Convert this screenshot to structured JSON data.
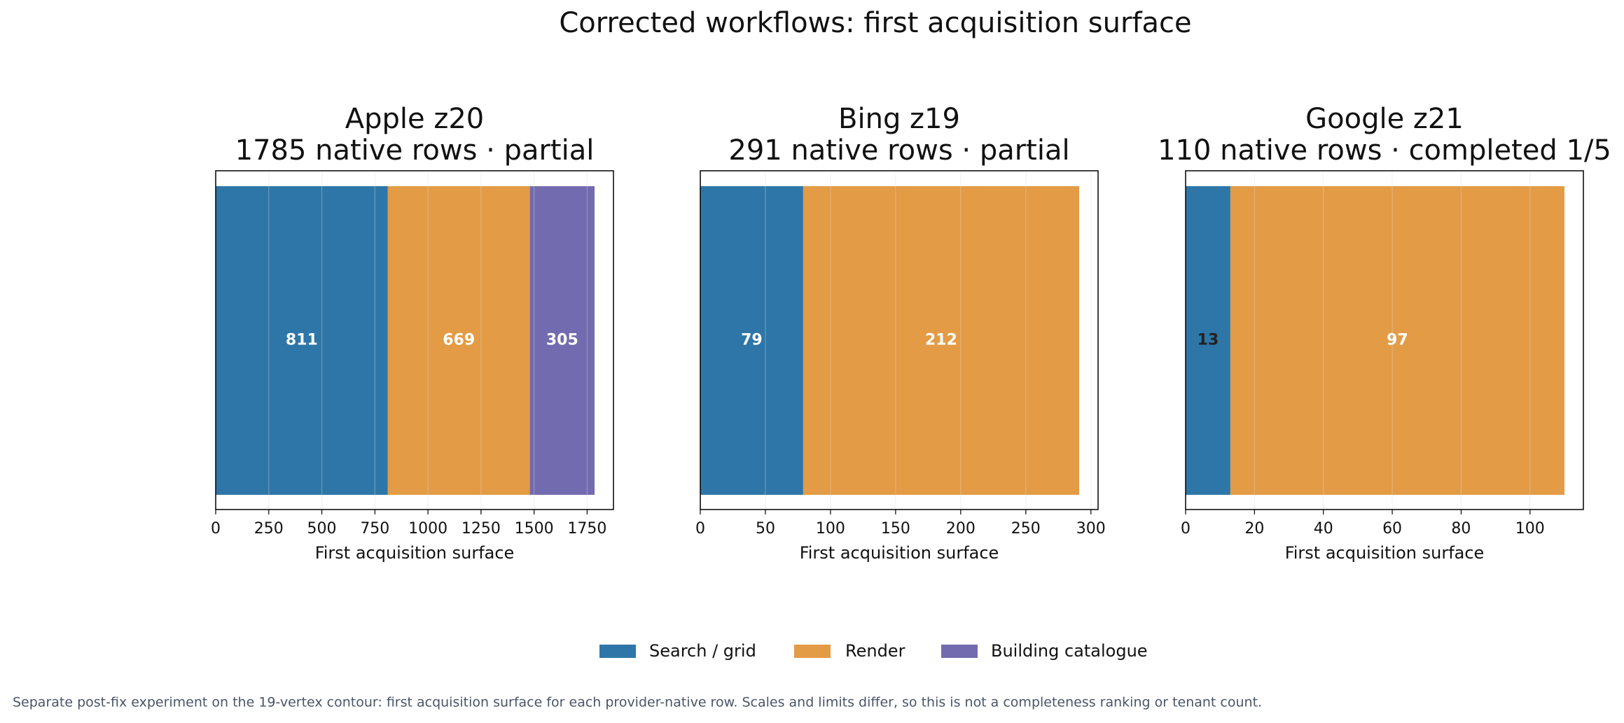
{
  "title": "Corrected workflows: first acquisition surface",
  "footnote": "Separate post-fix experiment on the 19-vertex contour: first acquisition surface for each provider-native row. Scales and limits differ, so this is not a completeness ranking or tenant count.",
  "chart_data": [
    {
      "type": "bar",
      "orientation": "horizontal",
      "stacked": true,
      "title": "Apple z20",
      "subtitle": "1785 native rows · partial",
      "xlabel": "First acquisition surface",
      "series": [
        {
          "name": "Search / grid",
          "color": "#2e76a8",
          "values": [
            811
          ]
        },
        {
          "name": "Render",
          "color": "#e39b45",
          "values": [
            669
          ]
        },
        {
          "name": "Building catalogue",
          "color": "#736baf",
          "values": [
            305
          ]
        }
      ],
      "xlim": [
        0,
        1874
      ],
      "xticks": [
        0,
        250,
        500,
        750,
        1000,
        1250,
        1500,
        1750
      ],
      "grid": true
    },
    {
      "type": "bar",
      "orientation": "horizontal",
      "stacked": true,
      "title": "Bing z19",
      "subtitle": "291 native rows · partial",
      "xlabel": "First acquisition surface",
      "series": [
        {
          "name": "Search / grid",
          "color": "#2e76a8",
          "values": [
            79
          ]
        },
        {
          "name": "Render",
          "color": "#e39b45",
          "values": [
            212
          ]
        }
      ],
      "xlim": [
        0,
        305.5
      ],
      "xticks": [
        0,
        50,
        100,
        150,
        200,
        250,
        300
      ],
      "grid": true
    },
    {
      "type": "bar",
      "orientation": "horizontal",
      "stacked": true,
      "title": "Google z21",
      "subtitle": "110 native rows · completed 1/5",
      "xlabel": "First acquisition surface",
      "series": [
        {
          "name": "Search / grid",
          "color": "#2e76a8",
          "values": [
            13
          ]
        },
        {
          "name": "Render",
          "color": "#e39b45",
          "values": [
            97
          ]
        }
      ],
      "xlim": [
        0,
        115.5
      ],
      "xticks": [
        0,
        20,
        40,
        60,
        80,
        100
      ],
      "grid": true
    }
  ]
}
